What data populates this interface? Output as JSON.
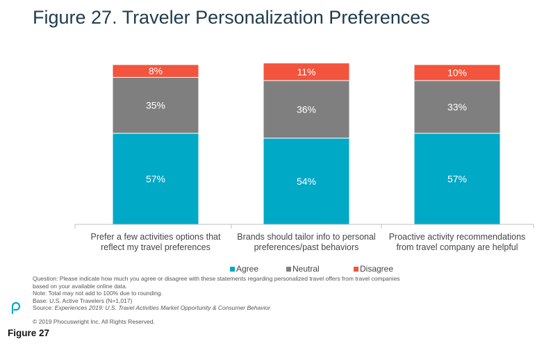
{
  "title": "Figure 27. Traveler Personalization Preferences",
  "chart_data": {
    "type": "bar",
    "stacked": true,
    "categories": [
      [
        "Prefer a few activities options that",
        "reflect my travel preferences"
      ],
      [
        "Brands should tailor info to personal",
        "preferences/past behaviors"
      ],
      [
        "Proactive activity recommendations",
        "from travel company are helpful"
      ]
    ],
    "series": [
      {
        "name": "Agree",
        "color": "#00a9c6",
        "values": [
          57,
          54,
          57
        ],
        "labels": [
          "57%",
          "54%",
          "57%"
        ]
      },
      {
        "name": "Neutral",
        "color": "#7f7f7f",
        "values": [
          35,
          36,
          33
        ],
        "labels": [
          "35%",
          "36%",
          "33%"
        ]
      },
      {
        "name": "Disagree",
        "color": "#f2543d",
        "values": [
          8,
          11,
          10
        ],
        "labels": [
          "8%",
          "11%",
          "10%"
        ]
      }
    ],
    "ylim": [
      0,
      100
    ],
    "grid": false,
    "legend_position": "bottom"
  },
  "notes": {
    "question_1": "Question: Please indicate how much you agree or disagree with these statements regarding personalized travel offers from travel companies",
    "question_2": "based on your available online data.",
    "note": "Note: Total may not add to 100% due to rounding.",
    "base": "Base: U.S. Active Travelers (N=1,017)",
    "source_prefix": "Source: ",
    "source_title": "Experiences 2019: U.S. Travel Activities Market Opportunity & Consumer Behavior"
  },
  "copyright": "© 2019 Phocuswright Inc. All Rights Reserved.",
  "caption": "Figure 27",
  "logo_icon": "phocuswright-logo-icon"
}
